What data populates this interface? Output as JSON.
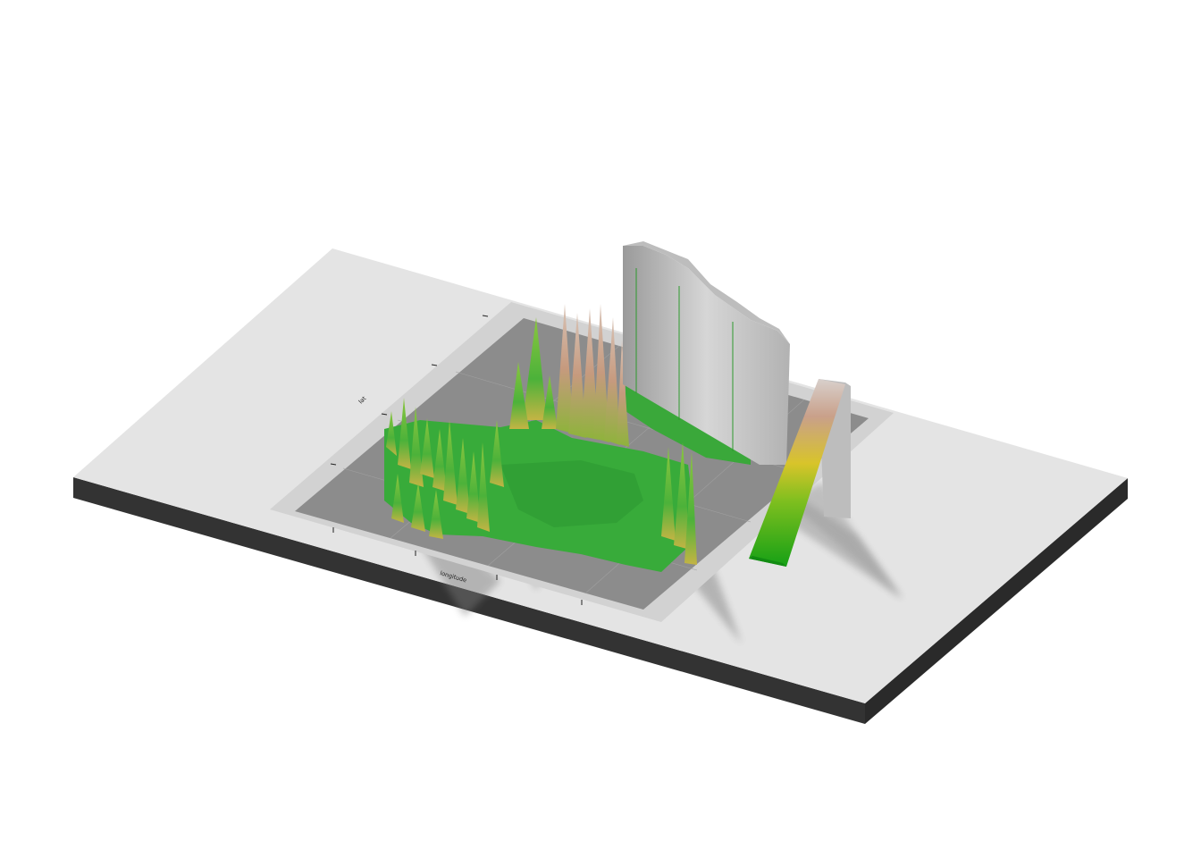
{
  "scene": {
    "type": "3d-rendered-map",
    "base_color": "#e4e4e4",
    "plot_panel_color": "#8a8a8a",
    "edge_color": "#333333",
    "terrain_palette": [
      "#1aa31a",
      "#3cb043",
      "#8fbc2f",
      "#c9b544",
      "#c9a38e",
      "#b8a8a0",
      "#cfcfcf"
    ]
  },
  "axes": {
    "x_title": "longitude",
    "y_title": "lat",
    "x_ticks": [
      "",
      "",
      "",
      ""
    ],
    "y_ticks": [
      "",
      "",
      "",
      ""
    ]
  },
  "legend": {
    "title": "",
    "ticks": [
      "",
      "",
      ""
    ]
  }
}
